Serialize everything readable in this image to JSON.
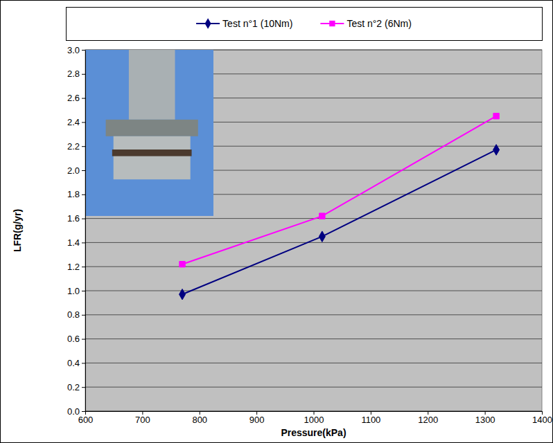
{
  "chart_data": {
    "type": "line",
    "x_label": "Pressure(kPa)",
    "y_label": "LFR(g/yr)",
    "x": [
      770,
      1015,
      1320
    ],
    "series": [
      {
        "name": "Test n°1 (10Nm)",
        "color": "#000080",
        "marker": "diamond",
        "values": [
          0.97,
          1.45,
          2.17
        ]
      },
      {
        "name": "Test n°2 (6Nm)",
        "color": "#FF00FF",
        "marker": "square",
        "values": [
          1.22,
          1.62,
          2.45
        ]
      }
    ],
    "xlim": [
      600,
      1400
    ],
    "xticks": [
      600,
      700,
      800,
      900,
      1000,
      1100,
      1200,
      1300,
      1400
    ],
    "ylim": [
      0,
      3
    ],
    "yticks": [
      {
        "value": 0,
        "label": "0.0"
      },
      0.2,
      0.4,
      0.6,
      0.8,
      {
        "value": 1,
        "label": "1.0"
      },
      1.2,
      1.4,
      1.6,
      1.8,
      {
        "value": 2,
        "label": "2.0"
      },
      2.2,
      2.4,
      2.6,
      2.8,
      {
        "value": 3,
        "label": "3.0"
      }
    ],
    "grid": true,
    "legend": "top"
  }
}
